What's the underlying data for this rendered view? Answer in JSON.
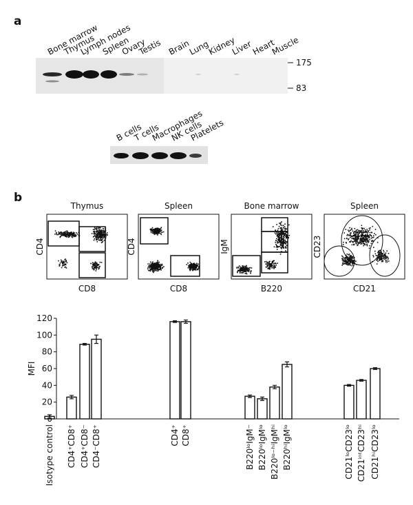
{
  "panel_a": {
    "label": "a",
    "lanes": [
      "Bone marrow",
      "Thymus",
      "Lymph nodes",
      "Spleen",
      "Ovary",
      "Testis",
      "Brain",
      "Lung",
      "Kidney",
      "Liver",
      "Heart",
      "Muscle"
    ],
    "markers": [
      "175",
      "83"
    ],
    "cell_lanes": [
      "B cells",
      "T cells",
      "Macrophages",
      "NK cells",
      "Platelets"
    ]
  },
  "panel_b": {
    "label": "b",
    "plots": [
      {
        "title": "Thymus",
        "ylabel": "CD4",
        "xlabel": "CD8"
      },
      {
        "title": "Spleen",
        "ylabel": "CD4",
        "xlabel": "CD8"
      },
      {
        "title": "Bone marrow",
        "ylabel": "IgM",
        "xlabel": "B220"
      },
      {
        "title": "Spleen",
        "ylabel": "CD23",
        "xlabel": "CD21"
      }
    ]
  },
  "chart_data": {
    "type": "bar",
    "ylabel": "MFI",
    "categories": [
      "Isotype control",
      "CD4⁺CD8⁺",
      "CD4⁺CD8⁻",
      "CD4⁻CD8⁺",
      "CD4⁺",
      "CD8⁺",
      "B220ˡᵒIgM⁻",
      "B220ˡᵒIgMˡᵒ",
      "B220ˡᵒ⁻ʰⁱIgMʰⁱ",
      "B220ʰⁱIgMˡᵒ",
      "CD21ˡᵒCD23ˡᵒ",
      "CD21ⁱⁿᵗCD23ʰⁱ",
      "CD21ʰⁱCD23ˡᵒ"
    ],
    "values": [
      3,
      26,
      89,
      95,
      116,
      116,
      27,
      24,
      38,
      65,
      40,
      46,
      60
    ],
    "errors": [
      2,
      2,
      1,
      5,
      1,
      2,
      1.5,
      2,
      2,
      3,
      1,
      1,
      1
    ],
    "color": "#ffffff",
    "ylim": [
      0,
      120
    ],
    "yticks": [
      0,
      20,
      40,
      60,
      80,
      100,
      120
    ]
  }
}
